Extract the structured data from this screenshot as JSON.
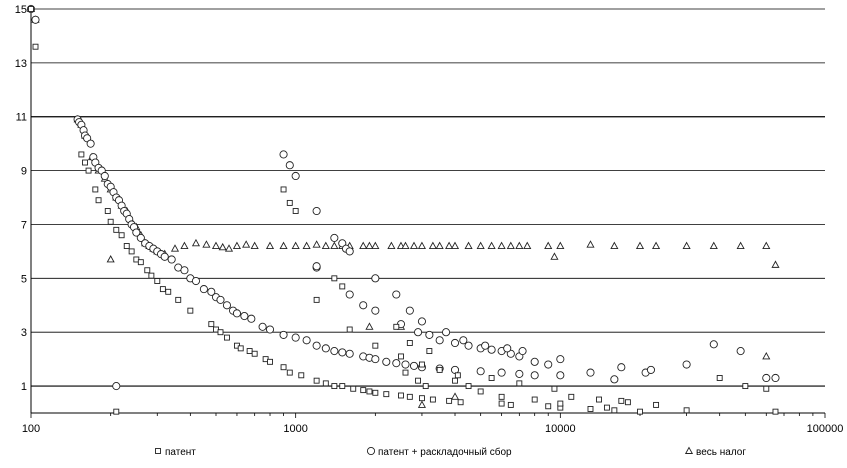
{
  "chart_data": {
    "type": "scatter",
    "title": "",
    "xlabel": "",
    "ylabel": "",
    "x_scale": "log",
    "xlim": [
      100,
      100000
    ],
    "ylim": [
      0,
      15
    ],
    "x_ticks": [
      100,
      1000,
      10000,
      100000
    ],
    "x_tick_labels": [
      "100",
      "1000",
      "10000",
      "100000"
    ],
    "y_ticks": [
      1,
      3,
      5,
      7,
      9,
      11,
      13,
      15
    ],
    "y_tick_labels": [
      "1",
      "3",
      "5",
      "7",
      "9",
      "11",
      "13",
      "15"
    ],
    "grid": "horizontal",
    "legend_position": "bottom",
    "series": [
      {
        "name": "патент",
        "marker": "square",
        "points": [
          [
            100,
            15
          ],
          [
            104,
            13.6
          ],
          [
            155,
            9.6
          ],
          [
            160,
            9.3
          ],
          [
            165,
            9.0
          ],
          [
            175,
            8.3
          ],
          [
            180,
            7.9
          ],
          [
            195,
            7.5
          ],
          [
            200,
            7.1
          ],
          [
            210,
            6.8
          ],
          [
            220,
            6.6
          ],
          [
            230,
            6.2
          ],
          [
            240,
            6.0
          ],
          [
            250,
            5.7
          ],
          [
            260,
            5.6
          ],
          [
            275,
            5.3
          ],
          [
            285,
            5.1
          ],
          [
            300,
            4.9
          ],
          [
            315,
            4.6
          ],
          [
            330,
            4.5
          ],
          [
            360,
            4.2
          ],
          [
            400,
            3.8
          ],
          [
            480,
            3.3
          ],
          [
            500,
            3.1
          ],
          [
            520,
            3.0
          ],
          [
            550,
            2.8
          ],
          [
            600,
            2.5
          ],
          [
            620,
            2.4
          ],
          [
            670,
            2.3
          ],
          [
            700,
            2.2
          ],
          [
            770,
            2.0
          ],
          [
            800,
            1.9
          ],
          [
            900,
            1.7
          ],
          [
            950,
            1.5
          ],
          [
            1050,
            1.4
          ],
          [
            1200,
            1.2
          ],
          [
            1300,
            1.1
          ],
          [
            1400,
            1.0
          ],
          [
            1500,
            1.0
          ],
          [
            1650,
            0.9
          ],
          [
            1800,
            0.85
          ],
          [
            1900,
            0.8
          ],
          [
            2000,
            0.75
          ],
          [
            2200,
            0.7
          ],
          [
            2500,
            0.65
          ],
          [
            2700,
            0.6
          ],
          [
            3000,
            0.55
          ],
          [
            3300,
            0.5
          ],
          [
            3800,
            0.45
          ],
          [
            4200,
            0.4
          ],
          [
            6000,
            0.35
          ],
          [
            6500,
            0.3
          ],
          [
            9000,
            0.25
          ],
          [
            10000,
            0.2
          ],
          [
            13000,
            0.15
          ],
          [
            16000,
            0.1
          ],
          [
            20000,
            0.05
          ],
          [
            30000,
            0.1
          ],
          [
            65000,
            0.05
          ],
          [
            210,
            0.05
          ],
          [
            900,
            8.3
          ],
          [
            950,
            7.8
          ],
          [
            1000,
            7.5
          ],
          [
            1200,
            4.2
          ],
          [
            1400,
            5.0
          ],
          [
            1500,
            4.7
          ],
          [
            1600,
            3.1
          ],
          [
            2000,
            2.5
          ],
          [
            2500,
            2.1
          ],
          [
            3000,
            1.8
          ],
          [
            3500,
            1.6
          ],
          [
            4000,
            1.2
          ],
          [
            4500,
            1.0
          ],
          [
            5000,
            0.8
          ],
          [
            6000,
            0.6
          ],
          [
            8000,
            0.5
          ],
          [
            10000,
            0.35
          ],
          [
            15000,
            0.2
          ],
          [
            18000,
            0.4
          ],
          [
            40000,
            1.3
          ],
          [
            50000,
            1.0
          ],
          [
            2700,
            2.6
          ],
          [
            3200,
            2.3
          ],
          [
            2400,
            3.2
          ],
          [
            2600,
            1.5
          ],
          [
            2900,
            1.2
          ],
          [
            3100,
            1.0
          ],
          [
            4100,
            1.4
          ],
          [
            5500,
            1.3
          ],
          [
            7000,
            1.1
          ],
          [
            9500,
            0.9
          ],
          [
            11000,
            0.6
          ],
          [
            14000,
            0.5
          ],
          [
            17000,
            0.45
          ],
          [
            23000,
            0.3
          ],
          [
            60000,
            0.9
          ]
        ]
      },
      {
        "name": "патент + раскладочный сбор",
        "marker": "circle",
        "points": [
          [
            100,
            15
          ],
          [
            104,
            14.6
          ],
          [
            150,
            10.9
          ],
          [
            152,
            10.8
          ],
          [
            155,
            10.7
          ],
          [
            158,
            10.5
          ],
          [
            160,
            10.3
          ],
          [
            163,
            10.2
          ],
          [
            168,
            10.0
          ],
          [
            172,
            9.5
          ],
          [
            175,
            9.3
          ],
          [
            180,
            9.1
          ],
          [
            185,
            9.0
          ],
          [
            190,
            8.8
          ],
          [
            195,
            8.5
          ],
          [
            200,
            8.4
          ],
          [
            205,
            8.2
          ],
          [
            210,
            8.0
          ],
          [
            215,
            7.9
          ],
          [
            220,
            7.7
          ],
          [
            225,
            7.5
          ],
          [
            230,
            7.4
          ],
          [
            235,
            7.2
          ],
          [
            240,
            7.0
          ],
          [
            245,
            6.9
          ],
          [
            250,
            6.7
          ],
          [
            260,
            6.5
          ],
          [
            270,
            6.3
          ],
          [
            280,
            6.2
          ],
          [
            290,
            6.1
          ],
          [
            300,
            6.0
          ],
          [
            310,
            5.9
          ],
          [
            320,
            5.8
          ],
          [
            340,
            5.7
          ],
          [
            360,
            5.4
          ],
          [
            380,
            5.3
          ],
          [
            400,
            5.0
          ],
          [
            420,
            4.9
          ],
          [
            450,
            4.6
          ],
          [
            480,
            4.5
          ],
          [
            500,
            4.3
          ],
          [
            520,
            4.2
          ],
          [
            550,
            4.0
          ],
          [
            580,
            3.8
          ],
          [
            600,
            3.7
          ],
          [
            640,
            3.6
          ],
          [
            680,
            3.5
          ],
          [
            750,
            3.2
          ],
          [
            800,
            3.1
          ],
          [
            900,
            2.9
          ],
          [
            1000,
            2.8
          ],
          [
            1100,
            2.7
          ],
          [
            1200,
            2.5
          ],
          [
            1300,
            2.4
          ],
          [
            1400,
            2.3
          ],
          [
            1500,
            2.25
          ],
          [
            1600,
            2.2
          ],
          [
            1800,
            2.1
          ],
          [
            1900,
            2.05
          ],
          [
            2000,
            2.0
          ],
          [
            2200,
            1.9
          ],
          [
            2400,
            1.85
          ],
          [
            2600,
            1.8
          ],
          [
            2800,
            1.75
          ],
          [
            3000,
            1.7
          ],
          [
            3500,
            1.65
          ],
          [
            4000,
            1.6
          ],
          [
            5000,
            1.55
          ],
          [
            6000,
            1.5
          ],
          [
            7000,
            1.45
          ],
          [
            8000,
            1.4
          ],
          [
            10000,
            1.4
          ],
          [
            13000,
            1.5
          ],
          [
            16000,
            1.25
          ],
          [
            21000,
            1.5
          ],
          [
            60000,
            1.3
          ],
          [
            210,
            1.0
          ],
          [
            900,
            9.6
          ],
          [
            950,
            9.2
          ],
          [
            1000,
            8.8
          ],
          [
            1200,
            7.5
          ],
          [
            1400,
            6.5
          ],
          [
            1500,
            6.3
          ],
          [
            1550,
            6.1
          ],
          [
            1600,
            6.0
          ],
          [
            1200,
            5.4
          ],
          [
            1600,
            4.4
          ],
          [
            1800,
            4.0
          ],
          [
            2000,
            3.8
          ],
          [
            2500,
            3.3
          ],
          [
            2900,
            3.0
          ],
          [
            3200,
            2.9
          ],
          [
            3500,
            2.7
          ],
          [
            4000,
            2.6
          ],
          [
            4500,
            2.5
          ],
          [
            5000,
            2.4
          ],
          [
            5500,
            2.35
          ],
          [
            6000,
            2.3
          ],
          [
            6500,
            2.2
          ],
          [
            7000,
            2.1
          ],
          [
            8000,
            1.9
          ],
          [
            9000,
            1.8
          ],
          [
            10000,
            2.0
          ],
          [
            17000,
            1.7
          ],
          [
            22000,
            1.6
          ],
          [
            30000,
            1.8
          ],
          [
            38000,
            2.55
          ],
          [
            48000,
            2.3
          ],
          [
            65000,
            1.3
          ],
          [
            1200,
            5.45
          ],
          [
            2000,
            5.0
          ],
          [
            2400,
            4.4
          ],
          [
            2700,
            3.8
          ],
          [
            3000,
            3.4
          ],
          [
            3700,
            3.0
          ],
          [
            4300,
            2.7
          ],
          [
            5200,
            2.5
          ],
          [
            6300,
            2.4
          ],
          [
            7200,
            2.3
          ]
        ]
      },
      {
        "name": "весь налог",
        "marker": "triangle",
        "points": [
          [
            100,
            15
          ],
          [
            104,
            14.6
          ],
          [
            150,
            10.9
          ],
          [
            155,
            10.7
          ],
          [
            160,
            10.3
          ],
          [
            170,
            9.5
          ],
          [
            180,
            9.0
          ],
          [
            190,
            8.7
          ],
          [
            200,
            8.3
          ],
          [
            210,
            8.0
          ],
          [
            220,
            7.7
          ],
          [
            230,
            7.5
          ],
          [
            240,
            7.1
          ],
          [
            250,
            6.9
          ],
          [
            260,
            6.6
          ],
          [
            270,
            6.3
          ],
          [
            280,
            6.2
          ],
          [
            290,
            6.1
          ],
          [
            300,
            6.0
          ],
          [
            320,
            5.9
          ],
          [
            350,
            6.1
          ],
          [
            380,
            6.2
          ],
          [
            420,
            6.3
          ],
          [
            460,
            6.25
          ],
          [
            500,
            6.2
          ],
          [
            530,
            6.15
          ],
          [
            560,
            6.1
          ],
          [
            600,
            6.2
          ],
          [
            650,
            6.25
          ],
          [
            700,
            6.2
          ],
          [
            800,
            6.2
          ],
          [
            900,
            6.2
          ],
          [
            1000,
            6.2
          ],
          [
            1100,
            6.2
          ],
          [
            1200,
            6.25
          ],
          [
            1300,
            6.2
          ],
          [
            1400,
            6.2
          ],
          [
            1500,
            6.2
          ],
          [
            1600,
            6.2
          ],
          [
            1800,
            6.2
          ],
          [
            1900,
            6.2
          ],
          [
            2000,
            6.2
          ],
          [
            2300,
            6.2
          ],
          [
            2500,
            6.2
          ],
          [
            2600,
            6.2
          ],
          [
            2800,
            6.2
          ],
          [
            3000,
            6.2
          ],
          [
            3300,
            6.2
          ],
          [
            3500,
            6.2
          ],
          [
            3800,
            6.2
          ],
          [
            4000,
            6.2
          ],
          [
            4500,
            6.2
          ],
          [
            5000,
            6.2
          ],
          [
            5500,
            6.2
          ],
          [
            6000,
            6.2
          ],
          [
            6500,
            6.2
          ],
          [
            7000,
            6.2
          ],
          [
            7500,
            6.2
          ],
          [
            9000,
            6.2
          ],
          [
            10000,
            6.2
          ],
          [
            13000,
            6.25
          ],
          [
            16000,
            6.2
          ],
          [
            20000,
            6.2
          ],
          [
            23000,
            6.2
          ],
          [
            30000,
            6.2
          ],
          [
            38000,
            6.2
          ],
          [
            48000,
            6.2
          ],
          [
            60000,
            6.2
          ],
          [
            65000,
            5.5
          ],
          [
            200,
            5.7
          ],
          [
            9500,
            5.8
          ],
          [
            1900,
            3.2
          ],
          [
            2500,
            3.2
          ],
          [
            60000,
            2.1
          ],
          [
            3000,
            0.3
          ],
          [
            4000,
            0.6
          ]
        ]
      }
    ]
  },
  "legend": {
    "items": [
      {
        "label": "патент",
        "marker": "square"
      },
      {
        "label": "патент + раскладочный сбор",
        "marker": "circle"
      },
      {
        "label": "весь налог",
        "marker": "triangle"
      }
    ]
  },
  "colors": {
    "background": "#ffffff",
    "ink": "#000000",
    "marker_stroke": "#222222"
  }
}
